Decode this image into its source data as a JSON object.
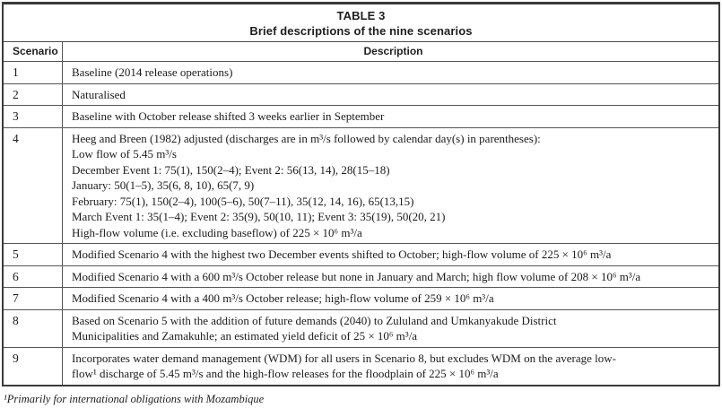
{
  "table": {
    "caption_line1": "TABLE 3",
    "caption_line2": "Brief descriptions of the nine scenarios",
    "columns": [
      "Scenario",
      "Description"
    ],
    "rows": [
      {
        "scenario": "1",
        "description": "Baseline (2014 release operations)"
      },
      {
        "scenario": "2",
        "description": "Naturalised"
      },
      {
        "scenario": "3",
        "description": "Baseline with October release shifted 3 weeks earlier in September"
      },
      {
        "scenario": "4",
        "description": "Heeg and Breen (1982) adjusted (discharges are in m³/s followed by calendar day(s) in parentheses):\nLow flow of 5.45 m³/s\nDecember Event 1: 75(1), 150(2–4); Event 2: 56(13, 14), 28(15–18)\nJanuary: 50(1–5), 35(6, 8, 10), 65(7, 9)\nFebruary: 75(1), 150(2–4), 100(5–6), 50(7–11), 35(12, 14, 16), 65(13,15)\nMarch Event 1: 35(1–4); Event 2: 35(9), 50(10, 11); Event 3: 35(19), 50(20, 21)\nHigh-flow volume (i.e. excluding baseflow) of 225 × 10⁶ m³/a"
      },
      {
        "scenario": "5",
        "description": "Modified Scenario 4 with the highest two December events shifted to October; high-flow volume of 225 × 10⁶ m³/a"
      },
      {
        "scenario": "6",
        "description": "Modified Scenario 4 with a 600 m³/s October release but none in January and March; high flow volume of 208 × 10⁶ m³/a"
      },
      {
        "scenario": "7",
        "description": "Modified Scenario 4 with a 400 m³/s October release; high-flow volume of 259 × 10⁶ m³/a"
      },
      {
        "scenario": "8",
        "description": "Based on Scenario 5 with the addition of future demands (2040) to Zululand and Umkanyakude District\nMunicipalities and Zamakuhle; an estimated yield deficit of 25 × 10⁶ m³/a"
      },
      {
        "scenario": "9",
        "description": "Incorporates water demand management (WDM) for all users in Scenario 8, but excludes WDM on the average low-\nflow¹ discharge of 5.45 m³/s and the high-flow releases for the floodplain of 225 × 10⁶ m³/a"
      }
    ],
    "footnote": "¹Primarily for international obligations with Mozambique"
  }
}
